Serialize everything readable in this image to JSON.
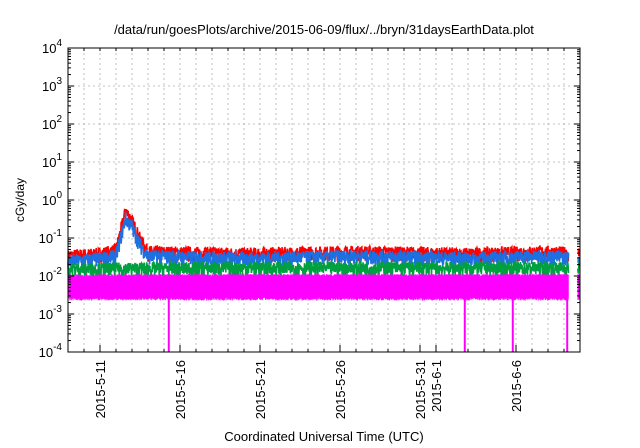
{
  "chart_data": {
    "type": "line",
    "title": "/data/run/goesPlots/archive/2015-06-09/flux/../bryn/31daysEarthData.plot",
    "xlabel": "Coordinated Universal Time (UTC)",
    "ylabel": "cGy/day",
    "yscale": "log",
    "ylim": [
      0.0001,
      10000
    ],
    "y_ticks": [
      {
        "value": 0.0001,
        "base": "10",
        "exp": "-4"
      },
      {
        "value": 0.001,
        "base": "10",
        "exp": "-3"
      },
      {
        "value": 0.01,
        "base": "10",
        "exp": "-2"
      },
      {
        "value": 0.1,
        "base": "10",
        "exp": "-1"
      },
      {
        "value": 1,
        "base": "10",
        "exp": "0"
      },
      {
        "value": 10,
        "base": "10",
        "exp": "1"
      },
      {
        "value": 100,
        "base": "10",
        "exp": "2"
      },
      {
        "value": 1000,
        "base": "10",
        "exp": "3"
      },
      {
        "value": 10000,
        "base": "10",
        "exp": "4"
      }
    ],
    "xlim": [
      "2015-05-09",
      "2015-06-10"
    ],
    "x_ticks": [
      "2015-5-11",
      "2015-5-16",
      "2015-5-21",
      "2015-5-26",
      "2015-5-31",
      "2015-6-1",
      "2015-6-6"
    ],
    "grid": true,
    "series": [
      {
        "color": "#ff0000",
        "baseline": 0.038,
        "points": [
          {
            "x": "2015-05-09",
            "y": 0.035
          },
          {
            "x": "2015-05-11",
            "y": 0.04
          },
          {
            "x": "2015-05-12",
            "y": 0.05
          },
          {
            "x": "2015-05-12.6",
            "y": 0.55
          },
          {
            "x": "2015-05-13",
            "y": 0.3
          },
          {
            "x": "2015-05-13.5",
            "y": 0.1
          },
          {
            "x": "2015-05-14",
            "y": 0.045
          },
          {
            "x": "2015-05-20",
            "y": 0.04
          },
          {
            "x": "2015-05-27",
            "y": 0.045
          },
          {
            "x": "2015-06-03",
            "y": 0.04
          },
          {
            "x": "2015-06-08",
            "y": 0.045
          },
          {
            "x": "2015-06-10",
            "y": 0.04
          }
        ]
      },
      {
        "color": "#1e6fe0",
        "baseline": 0.028,
        "points": [
          {
            "x": "2015-05-09",
            "y": 0.025
          },
          {
            "x": "2015-05-11",
            "y": 0.03
          },
          {
            "x": "2015-05-12",
            "y": 0.035
          },
          {
            "x": "2015-05-12.6",
            "y": 0.35
          },
          {
            "x": "2015-05-13",
            "y": 0.2
          },
          {
            "x": "2015-05-13.5",
            "y": 0.07
          },
          {
            "x": "2015-05-14",
            "y": 0.035
          },
          {
            "x": "2015-05-20",
            "y": 0.03
          },
          {
            "x": "2015-05-27",
            "y": 0.035
          },
          {
            "x": "2015-06-03",
            "y": 0.03
          },
          {
            "x": "2015-06-08",
            "y": 0.035
          },
          {
            "x": "2015-06-10",
            "y": 0.03
          }
        ]
      },
      {
        "color": "#00a040",
        "baseline": 0.017,
        "points": [
          {
            "x": "2015-05-09",
            "y": 0.016
          },
          {
            "x": "2015-05-20",
            "y": 0.017
          },
          {
            "x": "2015-06-10",
            "y": 0.017
          }
        ]
      },
      {
        "color": "#ff00ff",
        "baseline": 0.0085,
        "band": [
          0.0025,
          0.011
        ],
        "points": [
          {
            "x": "2015-05-09",
            "y": 0.008
          },
          {
            "x": "2015-05-20",
            "y": 0.0085
          },
          {
            "x": "2015-06-10",
            "y": 0.0085
          }
        ],
        "dropouts": [
          "2015-05-15.3",
          "2015-06-02.8",
          "2015-06-05.8",
          "2015-06-09.2"
        ]
      }
    ],
    "data_gaps": [
      [
        "2015-06-09.3",
        "2015-06-09.85"
      ]
    ]
  }
}
